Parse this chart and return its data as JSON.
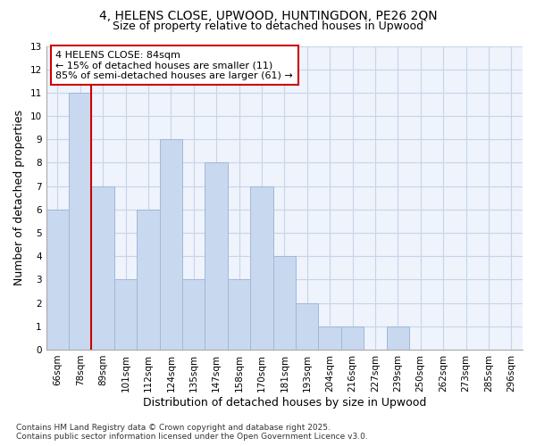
{
  "title1": "4, HELENS CLOSE, UPWOOD, HUNTINGDON, PE26 2QN",
  "title2": "Size of property relative to detached houses in Upwood",
  "xlabel": "Distribution of detached houses by size in Upwood",
  "ylabel": "Number of detached properties",
  "footer1": "Contains HM Land Registry data © Crown copyright and database right 2025.",
  "footer2": "Contains public sector information licensed under the Open Government Licence v3.0.",
  "categories": [
    "66sqm",
    "78sqm",
    "89sqm",
    "101sqm",
    "112sqm",
    "124sqm",
    "135sqm",
    "147sqm",
    "158sqm",
    "170sqm",
    "181sqm",
    "193sqm",
    "204sqm",
    "216sqm",
    "227sqm",
    "239sqm",
    "250sqm",
    "262sqm",
    "273sqm",
    "285sqm",
    "296sqm"
  ],
  "values": [
    6,
    11,
    7,
    3,
    6,
    9,
    3,
    8,
    3,
    7,
    4,
    2,
    1,
    1,
    0,
    1,
    0,
    0,
    0,
    0,
    0
  ],
  "bar_color": "#c8d8ef",
  "bar_edge_color": "#a0b8d8",
  "annotation_line1": "4 HELENS CLOSE: 84sqm",
  "annotation_line2": "← 15% of detached houses are smaller (11)",
  "annotation_line3": "85% of semi-detached houses are larger (61) →",
  "annotation_box_color": "#ffffff",
  "annotation_box_edge_color": "#cc0000",
  "vline_x_index": 1.5,
  "vline_color": "#cc0000",
  "ylim": [
    0,
    13
  ],
  "yticks": [
    0,
    1,
    2,
    3,
    4,
    5,
    6,
    7,
    8,
    9,
    10,
    11,
    12,
    13
  ],
  "bg_color": "#ffffff",
  "plot_bg_color": "#eef3fc",
  "grid_color": "#c8d4e8",
  "title_fontsize": 10,
  "subtitle_fontsize": 9,
  "axis_label_fontsize": 9,
  "tick_fontsize": 7.5,
  "annotation_fontsize": 8,
  "footer_fontsize": 6.5
}
